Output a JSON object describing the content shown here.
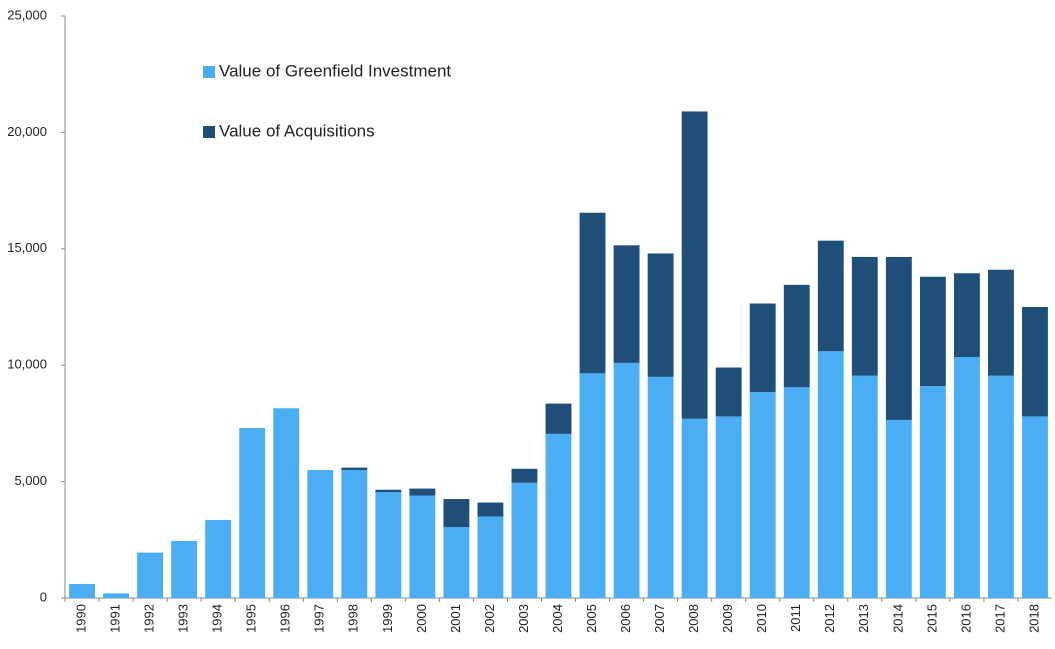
{
  "chart_data": {
    "type": "stacked_bar",
    "categories": [
      "1990",
      "1991",
      "1992",
      "1993",
      "1994",
      "1995",
      "1996",
      "1997",
      "1998",
      "1999",
      "2000",
      "2001",
      "2002",
      "2003",
      "2004",
      "2005",
      "2006",
      "2007",
      "2008",
      "2009",
      "2010",
      "2011",
      "2012",
      "2013",
      "2014",
      "2015",
      "2016",
      "2017",
      "2018"
    ],
    "series": [
      {
        "name": "Value of Greenfield Investment",
        "color": "#4baef5",
        "values": [
          600,
          200,
          1950,
          2450,
          3350,
          7300,
          8150,
          5500,
          5500,
          4550,
          4400,
          3050,
          3500,
          4950,
          7050,
          9650,
          10100,
          9500,
          7700,
          7800,
          8850,
          9050,
          10600,
          9550,
          7650,
          9100,
          10350,
          9550,
          7800
        ]
      },
      {
        "name": "Value of Acquisitions",
        "color": "#1f4e79",
        "values": [
          0,
          0,
          0,
          0,
          0,
          0,
          0,
          0,
          100,
          100,
          300,
          1200,
          600,
          600,
          1300,
          6900,
          5050,
          5300,
          13200,
          2100,
          3800,
          4400,
          4750,
          5100,
          7000,
          4700,
          3600,
          4550,
          4700
        ]
      }
    ],
    "ylim": [
      0,
      25000
    ],
    "yticks": [
      0,
      {
        "value": 5000,
        "label": "5,000"
      },
      {
        "value": 10000,
        "label": "10,000"
      },
      {
        "value": 15000,
        "label": "15,000"
      },
      {
        "value": 20000,
        "label": "20,000"
      },
      {
        "value": 25000,
        "label": "25,000"
      }
    ]
  }
}
